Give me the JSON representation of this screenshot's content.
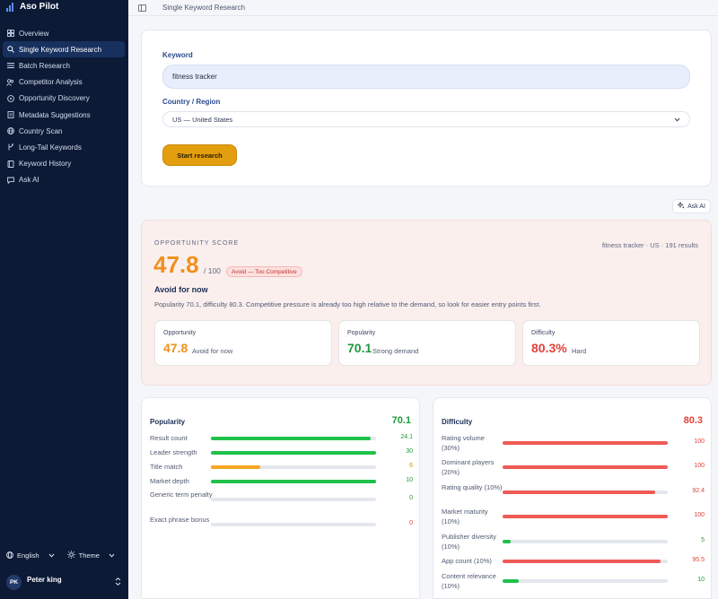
{
  "app": {
    "title": "Aso Pilot"
  },
  "sidebar": {
    "items": [
      {
        "label": "Overview",
        "icon": "grid-icon",
        "active": false
      },
      {
        "label": "Single Keyword Research",
        "icon": "search-icon",
        "active": true
      },
      {
        "label": "Batch Research",
        "icon": "list-icon",
        "active": false
      },
      {
        "label": "Competitor Analysis",
        "icon": "users-icon",
        "active": false
      },
      {
        "label": "Opportunity Discovery",
        "icon": "compass-icon",
        "active": false
      },
      {
        "label": "Metadata Suggestions",
        "icon": "file-icon",
        "active": false
      },
      {
        "label": "Country Scan",
        "icon": "globe-icon",
        "active": false
      },
      {
        "label": "Long-Tail Keywords",
        "icon": "branch-icon",
        "active": false
      },
      {
        "label": "Keyword History",
        "icon": "book-icon",
        "active": false
      },
      {
        "label": "Ask AI",
        "icon": "chat-icon",
        "active": false
      }
    ],
    "language": "English",
    "theme": "Theme",
    "user": {
      "initials": "PK",
      "name": "Peter king"
    }
  },
  "header": {
    "title": "Single Keyword Research"
  },
  "form": {
    "keyword_label": "Keyword",
    "keyword_value": "fitness tracker",
    "country_label": "Country / Region",
    "country_value": "US — United States",
    "start_label": "Start research"
  },
  "ask_ai_label": "Ask AI",
  "opportunity": {
    "section_label": "OPPORTUNITY SCORE",
    "meta": "fitness tracker · US · 191 results",
    "score": "47.8",
    "max": "/ 100",
    "badge": "Avoid — Too Competitive",
    "headline": "Avoid for now",
    "description": "Popularity 70.1, difficulty 80.3. Competitive pressure is already too high relative to the demand, so look for easier entry points first.",
    "cards": [
      {
        "title": "Opportunity",
        "value": "47.8",
        "sub": "Avoid for now",
        "color": "#f0901c"
      },
      {
        "title": "Popularity",
        "value": "70.1",
        "sub": "Strong demand",
        "color": "#1e9a3c"
      },
      {
        "title": "Difficulty",
        "value": "80.3%",
        "sub": "Hard",
        "color": "#e3413a"
      }
    ]
  },
  "popularity": {
    "title": "Popularity",
    "total": "70.1",
    "rows": [
      {
        "label": "Result count",
        "value": "24.1",
        "fill": 0.97,
        "color": "#1fc14a",
        "text_color": "#1e9a3c"
      },
      {
        "label": "Leader strength",
        "value": "30",
        "fill": 1.0,
        "color": "#1fc14a",
        "text_color": "#1e9a3c"
      },
      {
        "label": "Title match",
        "value": "6",
        "fill": 0.3,
        "color": "#f5a623",
        "text_color": "#e0851a"
      },
      {
        "label": "Market depth",
        "value": "10",
        "fill": 1.0,
        "color": "#1fc14a",
        "text_color": "#1e9a3c"
      },
      {
        "label": "Generic term penalty",
        "value": "0",
        "fill": 0,
        "color": "#1fc14a",
        "text_color": "#1e9a3c"
      },
      {
        "label": "Exact phrase bonus",
        "value": "0",
        "fill": 0,
        "color": "#e3413a",
        "text_color": "#e3413a"
      }
    ]
  },
  "difficulty": {
    "title": "Difficulty",
    "total": "80.3",
    "rows": [
      {
        "label": "Rating volume (30%)",
        "value": "100",
        "fill": 1.0,
        "color": "#f05a55",
        "text_color": "#e3413a"
      },
      {
        "label": "Dominant players (20%)",
        "value": "100",
        "fill": 1.0,
        "color": "#f05a55",
        "text_color": "#e3413a"
      },
      {
        "label": "Rating quality (10%)",
        "value": "92.4",
        "fill": 0.924,
        "color": "#f05a55",
        "text_color": "#e3413a"
      },
      {
        "label": "Market maturity (10%)",
        "value": "100",
        "fill": 1.0,
        "color": "#f05a55",
        "text_color": "#e3413a"
      },
      {
        "label": "Publisher diversity (10%)",
        "value": "5",
        "fill": 0.05,
        "color": "#1fc14a",
        "text_color": "#1e9a3c"
      },
      {
        "label": "App count (10%)",
        "value": "95.5",
        "fill": 0.955,
        "color": "#f05a55",
        "text_color": "#e3413a"
      },
      {
        "label": "Content relevance (10%)",
        "value": "10",
        "fill": 0.1,
        "color": "#1fc14a",
        "text_color": "#1e9a3c"
      }
    ]
  }
}
